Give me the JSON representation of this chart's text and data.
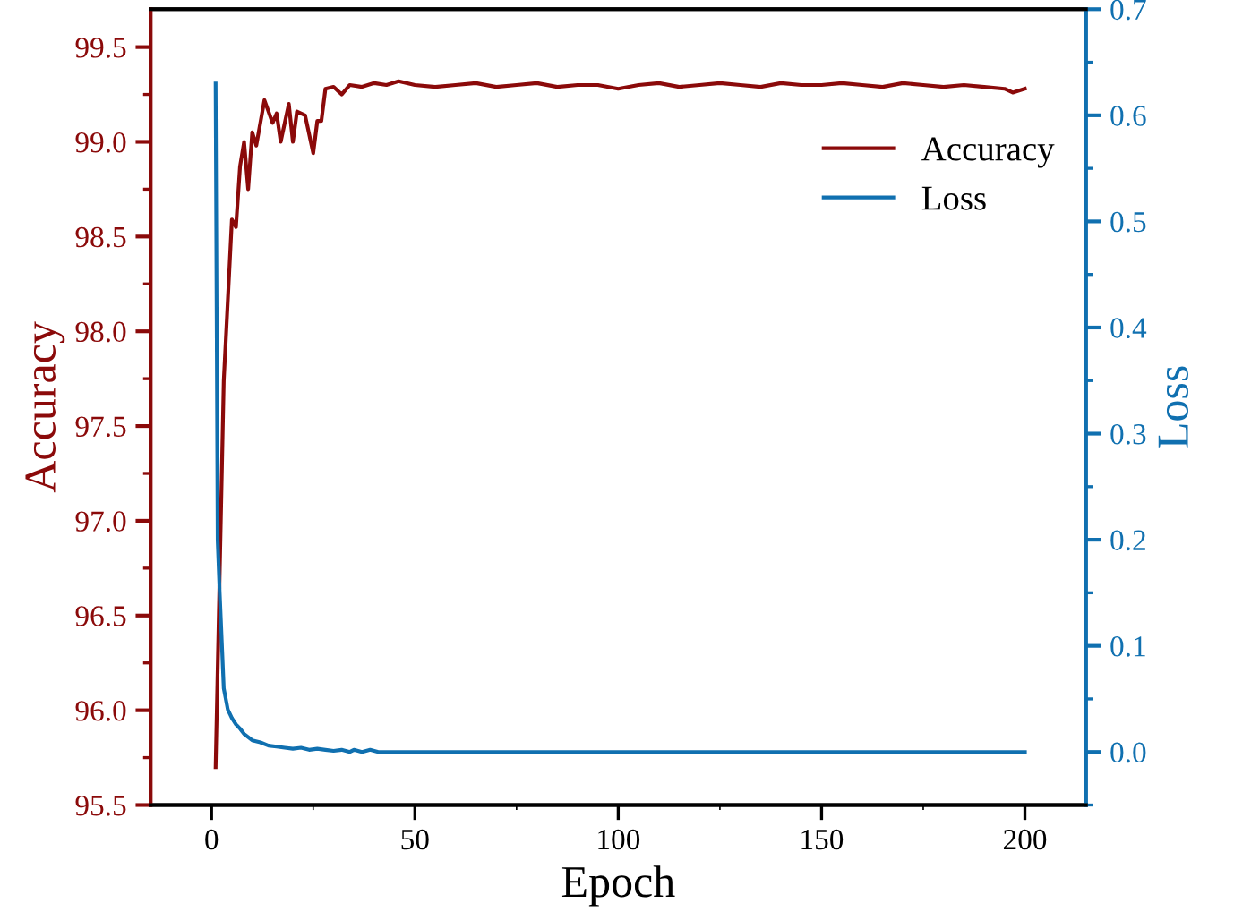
{
  "chart_data": {
    "type": "line",
    "xlabel": "Epoch",
    "ylabel": "Accuracy",
    "y2label": "Loss",
    "xlim": [
      -15,
      215
    ],
    "xticks": [
      0,
      50,
      100,
      150,
      200
    ],
    "ylim": [
      95.5,
      99.7
    ],
    "yticks": [
      95.5,
      {
        "value": 96,
        "label": "96.0"
      },
      96.5,
      {
        "value": 97,
        "label": "97.0"
      },
      97.5,
      {
        "value": 98,
        "label": "98.0"
      },
      98.5,
      {
        "value": 99,
        "label": "99.0"
      },
      99.5
    ],
    "y2lim": [
      -0.05,
      0.7
    ],
    "y2ticks": [
      {
        "value": 0,
        "label": "0.0"
      },
      0.1,
      0.2,
      0.3,
      0.4,
      0.5,
      0.6,
      0.7
    ],
    "legend": "top right",
    "grid": false,
    "line_style": "solid",
    "marker": "none",
    "series": [
      {
        "name": "Accuracy",
        "color": "#8b0a0a",
        "x": [
          1,
          3,
          5,
          6,
          7,
          8,
          9,
          10,
          11,
          13,
          15,
          16,
          17,
          19,
          20,
          21,
          23,
          25,
          26,
          27,
          28,
          30,
          32,
          34,
          37,
          40,
          43,
          46,
          50,
          55,
          60,
          65,
          70,
          75,
          80,
          85,
          90,
          95,
          100,
          105,
          110,
          115,
          120,
          125,
          130,
          135,
          140,
          145,
          150,
          155,
          160,
          165,
          170,
          175,
          180,
          185,
          190,
          195,
          197,
          200
        ],
        "values": [
          95.7,
          97.74,
          98.59,
          98.55,
          98.87,
          99.0,
          98.75,
          99.05,
          98.98,
          99.22,
          99.1,
          99.15,
          99.0,
          99.2,
          99.0,
          99.16,
          99.14,
          98.94,
          99.11,
          99.11,
          99.28,
          99.29,
          99.25,
          99.3,
          99.29,
          99.31,
          99.3,
          99.32,
          99.3,
          99.29,
          99.3,
          99.31,
          99.29,
          99.3,
          99.31,
          99.29,
          99.3,
          99.3,
          99.28,
          99.3,
          99.31,
          99.29,
          99.3,
          99.31,
          99.3,
          99.29,
          99.31,
          99.3,
          99.3,
          99.31,
          99.3,
          99.29,
          99.31,
          99.3,
          99.29,
          99.3,
          99.29,
          99.28,
          99.26,
          99.28
        ]
      },
      {
        "name": "Loss",
        "color": "#1070b0",
        "axis": "y2",
        "x": [
          1,
          1.5,
          2,
          3,
          4,
          5,
          6,
          7,
          8,
          9,
          10,
          12,
          14,
          16,
          18,
          20,
          22,
          24,
          26,
          28,
          30,
          32,
          34,
          35,
          37,
          39,
          41,
          44,
          200
        ],
        "values": [
          0.63,
          0.2,
          0.15,
          0.06,
          0.04,
          0.032,
          0.026,
          0.022,
          0.017,
          0.014,
          0.011,
          0.009,
          0.006,
          0.005,
          0.004,
          0.003,
          0.004,
          0.002,
          0.003,
          0.002,
          0.001,
          0.002,
          0.0,
          0.002,
          0.0,
          0.002,
          0.0,
          0.0,
          0.0
        ]
      }
    ]
  }
}
